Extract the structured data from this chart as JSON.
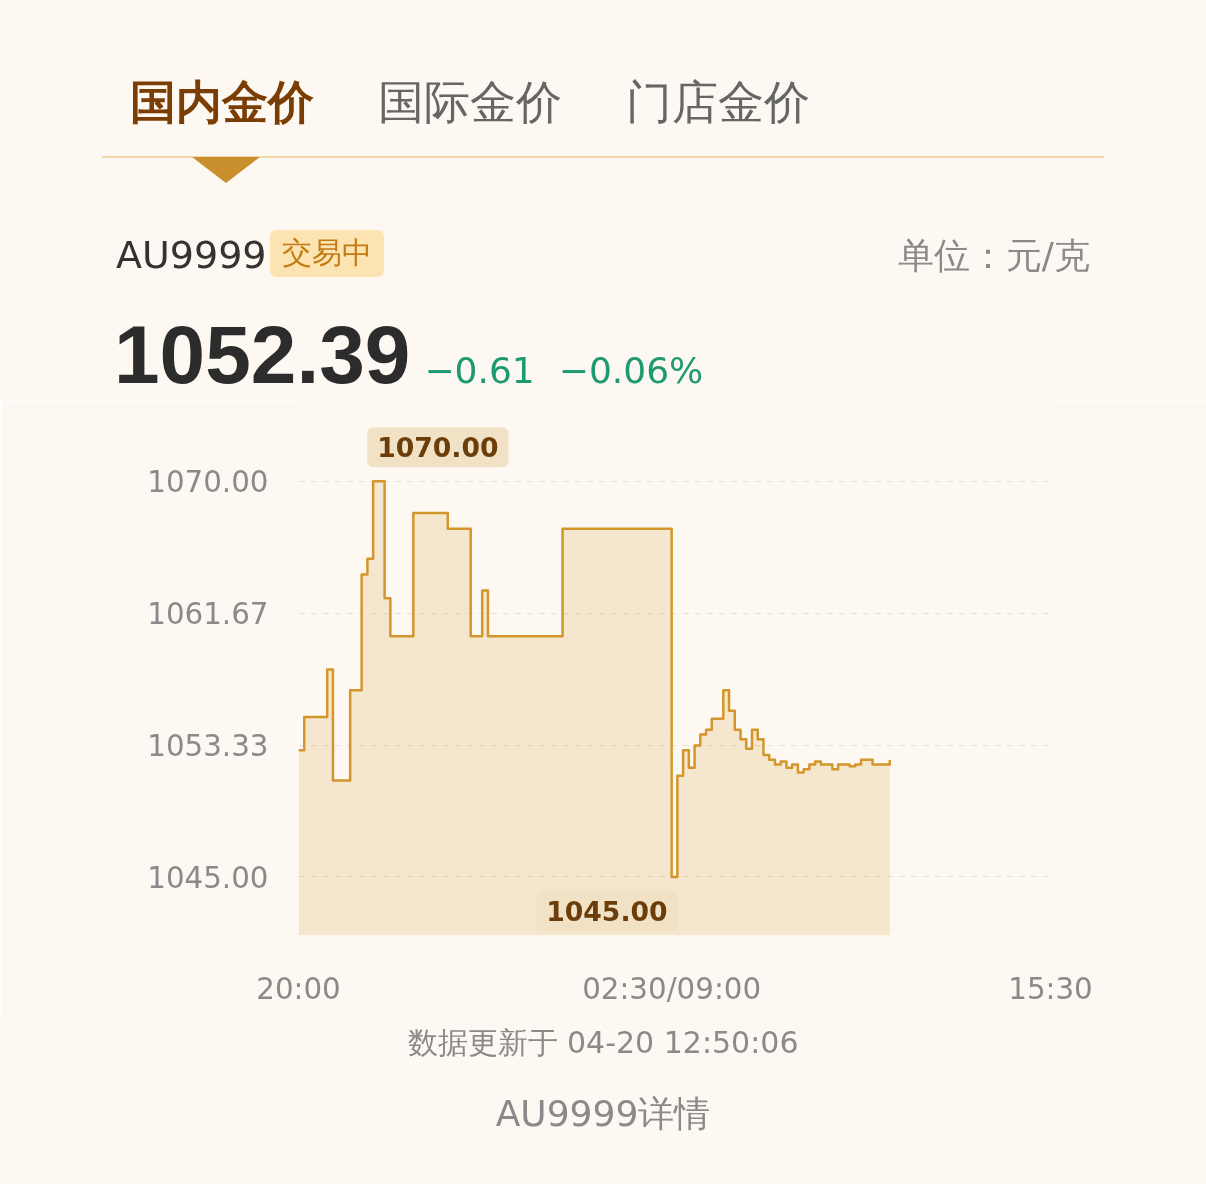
{
  "chart_data": {
    "type": "area",
    "title": "AU9999",
    "subtitle": "交易中",
    "annotations": [
      "国内金价",
      "国际金价",
      "门店金价",
      "单位：元/克",
      "1052.39",
      "−0.61",
      "−0.06%",
      "数据更新于 04-20 12:50:06",
      "AU9999详情",
      "1070.00",
      "1045.00"
    ],
    "categories": [
      "20:00",
      null,
      null,
      null,
      null,
      null,
      null,
      null,
      null,
      null,
      null,
      null,
      null,
      null,
      null,
      null,
      null,
      null,
      null,
      null,
      null,
      null,
      null,
      null,
      null,
      null,
      null,
      null,
      null,
      null,
      null,
      null,
      null,
      null,
      null,
      null,
      null,
      null,
      null,
      null,
      null,
      null,
      null,
      null,
      null,
      null,
      null,
      null,
      null,
      null,
      null,
      null,
      null,
      null,
      null,
      null,
      null,
      null,
      null,
      null,
      null,
      null,
      null,
      null,
      null,
      "02:30/09:00",
      null,
      null,
      null,
      null,
      null,
      null,
      null,
      null,
      null,
      null,
      null,
      null,
      null,
      null,
      null,
      null,
      null,
      null,
      null,
      null,
      null,
      null,
      null,
      null,
      null,
      null,
      null,
      null,
      null,
      null,
      null,
      null,
      null,
      null,
      null,
      null,
      null,
      null,
      null,
      null,
      null,
      null,
      null,
      null,
      null,
      null,
      null,
      null,
      null,
      null,
      null,
      null,
      null,
      null,
      null,
      null,
      null,
      null,
      null,
      null,
      null,
      null,
      null,
      null,
      null,
      "15:30"
    ],
    "series": [
      {
        "color": "#d4962a",
        "values": [
          1053.0,
          1055.1,
          1055.1,
          1055.1,
          1055.1,
          1058.1,
          1051.1,
          1051.1,
          1051.1,
          1056.8,
          1056.8,
          1064.1,
          1065.1,
          1070.0,
          1070.0,
          1062.6,
          1060.2,
          1060.2,
          1060.2,
          1060.2,
          1068.0,
          1068.0,
          1068.0,
          1068.0,
          1068.0,
          1068.0,
          1067.0,
          1067.0,
          1067.0,
          1067.0,
          1060.2,
          1060.2,
          1063.1,
          1060.2,
          1060.2,
          1060.2,
          1060.2,
          1060.2,
          1060.2,
          1060.2,
          1060.2,
          1060.2,
          1060.2,
          1060.2,
          1060.2,
          1060.2,
          1067.0,
          1067.0,
          1067.0,
          1067.0,
          1067.0,
          1067.0,
          1067.0,
          1067.0,
          1067.0,
          1067.0,
          1067.0,
          1067.0,
          1067.0,
          1067.0,
          1067.0,
          1067.0,
          1067.0,
          1067.0,
          1067.0,
          1045.0,
          1051.4,
          1053.0,
          1051.9,
          1053.3,
          1054.0,
          1054.3,
          1055.0,
          1055.0,
          1056.8,
          1055.5,
          1054.3,
          1053.7,
          1053.1,
          1054.3,
          1053.7,
          1052.7,
          1052.4,
          1052.1,
          1052.3,
          1051.9,
          1052.1,
          1051.6,
          1051.8,
          1052.1,
          1052.3,
          1052.1,
          1052.1,
          1051.8,
          1052.1,
          1052.1,
          1052.0,
          1052.1,
          1052.4,
          1052.4,
          1052.1,
          1052.1,
          1052.1,
          1052.39,
          null,
          null,
          null,
          null,
          null,
          null,
          null,
          null,
          null,
          null,
          null,
          null,
          null,
          null,
          null,
          null,
          null,
          null,
          null,
          null,
          null,
          null,
          null,
          null,
          null,
          null,
          null,
          null
        ]
      }
    ],
    "ylim": [
      1041.3,
      1075.1
    ],
    "yticks": [
      {
        "value": 1045,
        "label": "1045.00"
      },
      1053.33,
      1061.67,
      {
        "value": 1070,
        "label": "1070.00"
      }
    ],
    "grid": "y"
  }
}
